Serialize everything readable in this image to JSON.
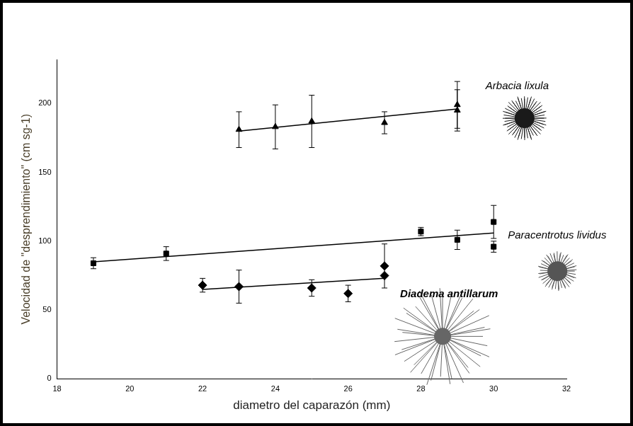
{
  "chart_data": {
    "type": "scatter",
    "x_label": "diametro del caparazón (mm)",
    "y_label": "Velocidad de \"desprendimiento\" (cm sg-1)",
    "xlim": [
      18,
      32
    ],
    "xticks": [
      18,
      20,
      22,
      24,
      26,
      28,
      30,
      32
    ],
    "ylim": [
      0,
      232
    ],
    "yticks": [
      0,
      50,
      100,
      150,
      200
    ],
    "grid": false,
    "series": [
      {
        "name": "Arbacia lixula",
        "color": "#000000",
        "marker": "triangle",
        "x": [
          23,
          24,
          25,
          27,
          29,
          29
        ],
        "values": [
          181,
          183,
          187,
          186,
          199,
          195
        ],
        "errors": [
          13,
          16,
          19,
          8,
          17,
          15
        ],
        "trend": {
          "x": [
            23,
            29
          ],
          "values": [
            180,
            196
          ]
        }
      },
      {
        "name": "Paracentrotus lividus",
        "color": "#000000",
        "marker": "square",
        "x": [
          19,
          21,
          28,
          29,
          30,
          30
        ],
        "values": [
          84,
          91,
          107,
          101,
          114,
          96
        ],
        "errors": [
          4,
          5,
          3,
          7,
          12,
          4
        ],
        "trend": {
          "x": [
            19,
            30
          ],
          "values": [
            85,
            106
          ]
        }
      },
      {
        "name": "Diadema antillarum",
        "color": "#000000",
        "marker": "diamond",
        "x": [
          22,
          23,
          25,
          26,
          27,
          27
        ],
        "values": [
          68,
          67,
          66,
          62,
          82,
          75
        ],
        "errors": [
          5,
          12,
          6,
          6,
          16,
          0
        ],
        "trend": {
          "x": [
            22,
            27
          ],
          "values": [
            65,
            73
          ]
        }
      }
    ]
  }
}
